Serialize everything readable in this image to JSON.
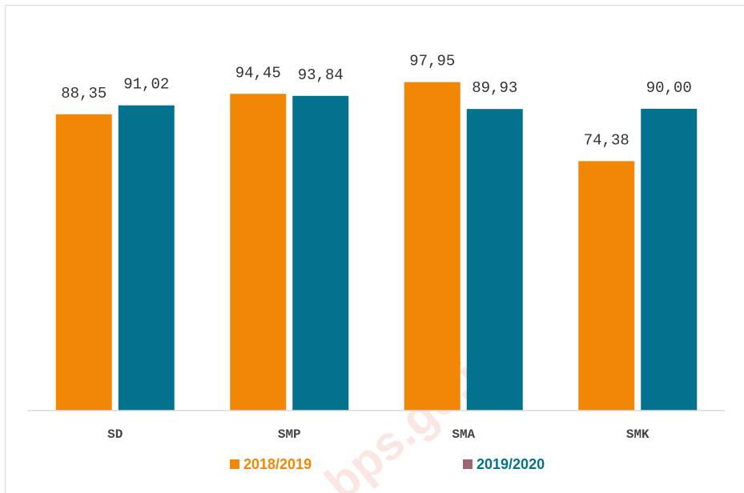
{
  "chart_data": {
    "type": "bar",
    "categories": [
      "SD",
      "SMP",
      "SMA",
      "SMK"
    ],
    "series": [
      {
        "name": "2018/2019",
        "color": "#f28705",
        "marker_color": "#f28705",
        "values": [
          88.35,
          94.45,
          97.95,
          74.38
        ],
        "value_labels": [
          "88,35",
          "94,45",
          "97,95",
          "74,38"
        ]
      },
      {
        "name": "2019/2020",
        "color": "#03728f",
        "marker_color": "#9c6672",
        "values": [
          91.02,
          93.84,
          89.93,
          90.0
        ],
        "value_labels": [
          "91,02",
          "93,84",
          "89,93",
          "90,00"
        ]
      }
    ],
    "ylim": [
      0,
      100
    ],
    "legend": "bottom",
    "watermark": "bps.go.id"
  }
}
